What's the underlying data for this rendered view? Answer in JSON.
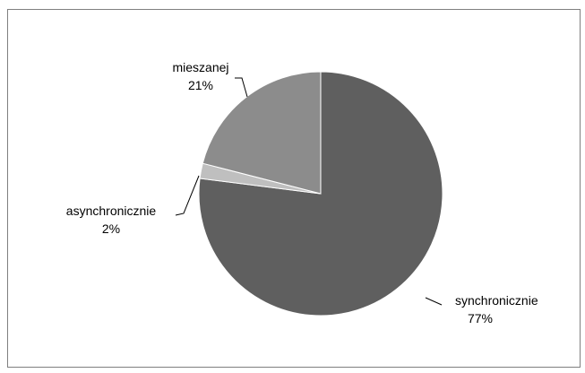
{
  "chart_data": {
    "type": "pie",
    "title": "",
    "slices": [
      {
        "label": "synchronicznie",
        "value": 77,
        "display": "77%",
        "color": "#5f5f5f"
      },
      {
        "label": "asynchronicznie",
        "value": 2,
        "display": "2%",
        "color": "#bfbfbf"
      },
      {
        "label": "mieszanej",
        "value": 21,
        "display": "21%",
        "color": "#8c8c8c"
      }
    ],
    "legend": "none",
    "start_angle_deg": 90,
    "direction": "clockwise"
  }
}
